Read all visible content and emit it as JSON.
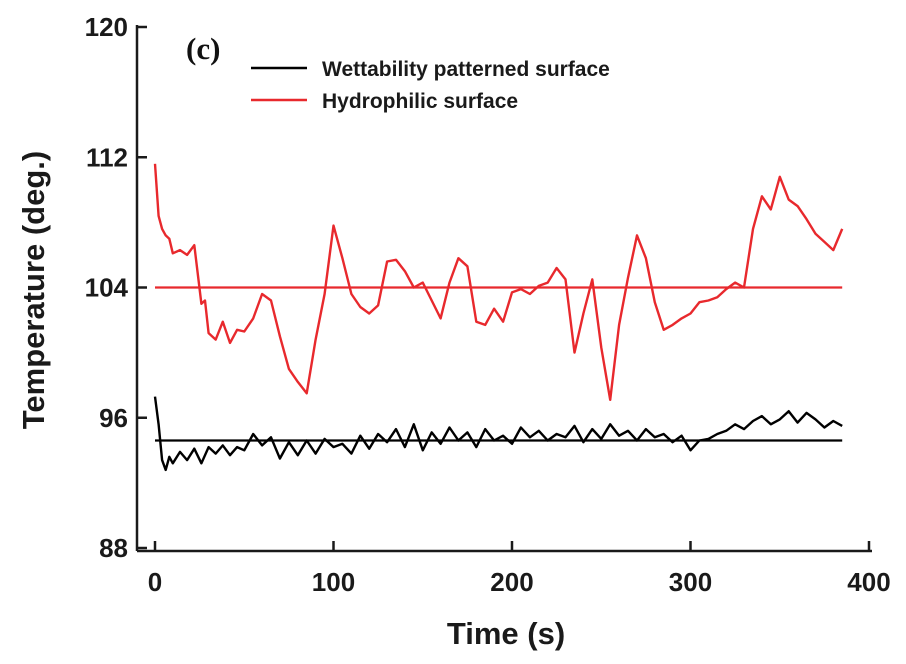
{
  "chart_data": {
    "type": "line",
    "panel_label": "(c)",
    "xlabel": "Time (s)",
    "ylabel": "Temperature (deg.)",
    "xlim": [
      0,
      400
    ],
    "ylim": [
      88,
      120
    ],
    "xticks": [
      0,
      100,
      200,
      300,
      400
    ],
    "yticks": [
      88,
      96,
      104,
      112,
      120
    ],
    "legend_position": "top-center",
    "grid": false,
    "series": [
      {
        "name": "Wettability patterned surface",
        "color": "#000000",
        "x": [
          0,
          2,
          4,
          6,
          8,
          10,
          14,
          18,
          22,
          26,
          30,
          34,
          38,
          42,
          46,
          50,
          55,
          60,
          65,
          70,
          75,
          80,
          85,
          90,
          95,
          100,
          105,
          110,
          115,
          120,
          125,
          130,
          135,
          140,
          145,
          150,
          155,
          160,
          165,
          170,
          175,
          180,
          185,
          190,
          195,
          200,
          205,
          210,
          215,
          220,
          225,
          230,
          235,
          240,
          245,
          250,
          255,
          260,
          265,
          270,
          275,
          280,
          285,
          290,
          295,
          300,
          305,
          310,
          315,
          320,
          325,
          330,
          335,
          340,
          345,
          350,
          355,
          360,
          365,
          370,
          375,
          380,
          385
        ],
        "values": [
          97.3,
          95.6,
          93.4,
          92.8,
          93.6,
          93.2,
          93.9,
          93.4,
          94.1,
          93.2,
          94.2,
          93.8,
          94.3,
          93.7,
          94.2,
          94.0,
          95.0,
          94.3,
          94.8,
          93.5,
          94.5,
          93.7,
          94.6,
          93.8,
          94.7,
          94.2,
          94.4,
          93.8,
          94.9,
          94.1,
          95.0,
          94.5,
          95.3,
          94.2,
          95.6,
          94.0,
          95.1,
          94.4,
          95.4,
          94.6,
          95.1,
          94.2,
          95.3,
          94.6,
          94.9,
          94.4,
          95.4,
          94.8,
          95.2,
          94.6,
          95.0,
          94.8,
          95.5,
          94.5,
          95.3,
          94.7,
          95.6,
          94.9,
          95.2,
          94.6,
          95.3,
          94.8,
          95.0,
          94.5,
          94.9,
          94.0,
          94.6,
          94.7,
          95.0,
          95.2,
          95.6,
          95.3,
          95.8,
          96.1,
          95.6,
          95.9,
          96.4,
          95.7,
          96.3,
          95.9,
          95.4,
          95.8,
          95.5
        ]
      },
      {
        "name": "Hydrophilic surface",
        "color": "#e8292d",
        "x": [
          0,
          2,
          4,
          6,
          8,
          10,
          14,
          18,
          22,
          26,
          28,
          30,
          34,
          38,
          42,
          46,
          50,
          55,
          60,
          65,
          70,
          75,
          80,
          85,
          88,
          90,
          95,
          100,
          105,
          110,
          115,
          120,
          125,
          130,
          135,
          140,
          145,
          150,
          155,
          160,
          165,
          170,
          175,
          180,
          185,
          190,
          195,
          200,
          205,
          210,
          215,
          220,
          225,
          230,
          235,
          240,
          245,
          250,
          255,
          260,
          265,
          270,
          275,
          280,
          285,
          290,
          295,
          300,
          305,
          310,
          315,
          320,
          325,
          330,
          335,
          340,
          345,
          350,
          355,
          360,
          365,
          370,
          375,
          380,
          385
        ],
        "values": [
          111.6,
          108.4,
          107.6,
          107.2,
          107.0,
          106.1,
          106.3,
          106.0,
          106.6,
          103.0,
          103.2,
          101.2,
          100.8,
          101.9,
          100.6,
          101.4,
          101.3,
          102.1,
          103.6,
          103.2,
          101.0,
          99.0,
          98.2,
          97.5,
          99.5,
          100.8,
          103.6,
          107.8,
          105.8,
          103.6,
          102.8,
          102.4,
          102.9,
          105.6,
          105.7,
          105.0,
          104.0,
          104.3,
          103.2,
          102.1,
          104.3,
          105.8,
          105.3,
          101.9,
          101.7,
          102.7,
          101.9,
          103.7,
          103.9,
          103.6,
          104.1,
          104.3,
          105.2,
          104.5,
          100.0,
          102.4,
          104.5,
          100.3,
          97.1,
          101.7,
          104.6,
          107.2,
          105.8,
          103.1,
          101.4,
          101.7,
          102.1,
          102.4,
          103.1,
          103.2,
          103.4,
          103.9,
          104.3,
          104.0,
          107.6,
          109.6,
          108.8,
          110.8,
          109.4,
          109.0,
          108.2,
          107.3,
          106.8,
          106.3,
          107.6
        ]
      },
      {
        "name": "",
        "color": "#000000",
        "x": [
          0,
          385
        ],
        "values": [
          94.6,
          94.6
        ]
      },
      {
        "name": "",
        "color": "#e8292d",
        "x": [
          0,
          385
        ],
        "values": [
          104.0,
          104.0
        ]
      }
    ]
  }
}
